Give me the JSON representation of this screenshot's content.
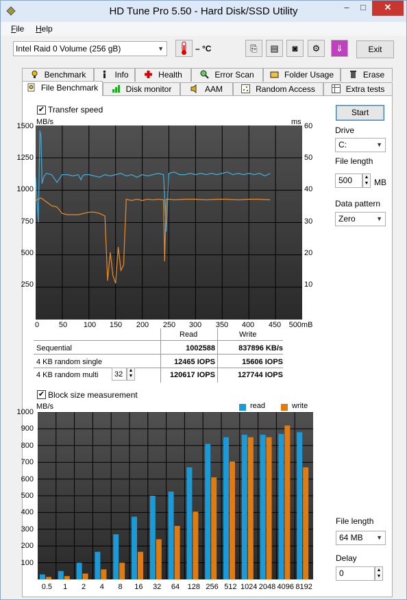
{
  "window": {
    "title": "HD Tune Pro 5.50 - Hard Disk/SSD Utility",
    "min_label": "–",
    "max_label": "□",
    "close_label": "✕"
  },
  "menu": {
    "file": "File",
    "help": "Help"
  },
  "toolbar": {
    "drive": "Intel   Raid 0 Volume (256 gB)",
    "temperature": "– °C",
    "exit_label": "Exit",
    "icons": [
      "copy-icon",
      "save-icon",
      "camera-icon",
      "options-icon",
      "download-icon"
    ],
    "icon_glyphs": [
      "⎘",
      "▤",
      "◙",
      "⚙",
      "⇓"
    ]
  },
  "tabs_top": [
    "Benchmark",
    "Info",
    "Health",
    "Error Scan",
    "Folder Usage",
    "Erase"
  ],
  "tabs_bottom": [
    "File Benchmark",
    "Disk monitor",
    "AAM",
    "Random Access",
    "Extra tests"
  ],
  "transfer": {
    "checkbox_label": "Transfer speed",
    "checked": true,
    "y_unit_left": "MB/s",
    "y_unit_right": "ms",
    "y_ticks_left": [
      "1500",
      "1250",
      "1000",
      "750",
      "500",
      "250"
    ],
    "y_ticks_right": [
      "60",
      "50",
      "40",
      "30",
      "20",
      "10"
    ],
    "x_ticks": [
      "0",
      "50",
      "100",
      "150",
      "200",
      "250",
      "300",
      "350",
      "400",
      "450",
      "500mB"
    ]
  },
  "results": {
    "col_read": "Read",
    "col_write": "Write",
    "rows": [
      {
        "label": "Sequential",
        "read": "1002588",
        "write": "837896 KB/s"
      },
      {
        "label": "4 KB random single",
        "read": "12465 IOPS",
        "write": "15606 IOPS"
      },
      {
        "label": "4 KB random multi",
        "read": "120617 IOPS",
        "write": "127744 IOPS"
      }
    ],
    "queue_depth": "32"
  },
  "side": {
    "start_label": "Start",
    "drive_label": "Drive",
    "drive_value": "C:",
    "file_length_label": "File length",
    "file_length_value": "500",
    "file_length_unit": "MB",
    "pattern_label": "Data pattern",
    "pattern_value": "Zero"
  },
  "block": {
    "checkbox_label": "Block size measurement",
    "checked": true,
    "y_unit": "MB/s",
    "legend_read": "read",
    "legend_write": "write",
    "y_ticks": [
      "1000",
      "900",
      "800",
      "700",
      "600",
      "500",
      "400",
      "300",
      "200",
      "100"
    ],
    "file_length_label": "File length",
    "file_length_value": "64 MB",
    "delay_label": "Delay",
    "delay_value": "0",
    "colors": {
      "read": "#1a9ad6",
      "write": "#e07b12"
    }
  },
  "chart_data": [
    {
      "type": "line",
      "title": "",
      "xlabel": "",
      "ylabel": "MB/s",
      "xlim": [
        0,
        500
      ],
      "ylim": [
        0,
        1500
      ],
      "y2lim": [
        0,
        60
      ],
      "grid": true,
      "series": [
        {
          "name": "",
          "axis": "left",
          "color": "#3fa9d9",
          "x": [
            0,
            5,
            8,
            10,
            12,
            15,
            20,
            30,
            40,
            50,
            60,
            70,
            80,
            85,
            88,
            92,
            100,
            110,
            120,
            130,
            140,
            150,
            160,
            170,
            180,
            190,
            200,
            210,
            220,
            230,
            240,
            245,
            250,
            260,
            270,
            280,
            290,
            300,
            310,
            320,
            330,
            340,
            350,
            360,
            370,
            380,
            390,
            400,
            410,
            420,
            430,
            440
          ],
          "y": [
            1100,
            750,
            1460,
            1420,
            1050,
            1100,
            1130,
            1120,
            1060,
            1120,
            1120,
            1110,
            1120,
            1080,
            1110,
            1120,
            1120,
            1110,
            1100,
            1120,
            1110,
            1120,
            1130,
            1110,
            1120,
            1100,
            1120,
            1110,
            1120,
            1130,
            1120,
            680,
            1130,
            1140,
            1120,
            1120,
            1130,
            1120,
            1130,
            1120,
            1130,
            1120,
            1130,
            1140,
            1120,
            1130,
            1120,
            1130,
            1120,
            1130,
            1110,
            1130
          ]
        },
        {
          "name": "",
          "axis": "left",
          "color": "#e0882a",
          "x": [
            0,
            10,
            20,
            30,
            40,
            50,
            60,
            70,
            80,
            90,
            100,
            110,
            120,
            130,
            135,
            140,
            145,
            150,
            155,
            160,
            165,
            170,
            180,
            190,
            200,
            210,
            220,
            230,
            240,
            242,
            245,
            250,
            260,
            280,
            300,
            320,
            340,
            360,
            380,
            400,
            420,
            440
          ],
          "y": [
            920,
            940,
            910,
            880,
            870,
            820,
            810,
            810,
            810,
            820,
            830,
            830,
            820,
            800,
            300,
            520,
            340,
            280,
            560,
            380,
            420,
            930,
            920,
            930,
            920,
            930,
            925,
            930,
            925,
            450,
            930,
            930,
            925,
            930,
            930,
            925,
            930,
            930,
            925,
            930,
            930,
            925
          ]
        }
      ]
    },
    {
      "type": "bar",
      "title": "",
      "xlabel": "",
      "ylabel": "MB/s",
      "ylim": [
        0,
        1000
      ],
      "legend": "top-right",
      "categories": [
        "0.5",
        "1",
        "2",
        "4",
        "8",
        "16",
        "32",
        "64",
        "128",
        "256",
        "512",
        "1024",
        "2048",
        "4096",
        "8192"
      ],
      "series": [
        {
          "name": "read",
          "values": [
            30,
            50,
            100,
            165,
            270,
            375,
            500,
            525,
            670,
            810,
            850,
            865,
            865,
            870,
            880
          ]
        },
        {
          "name": "write",
          "values": [
            15,
            20,
            35,
            60,
            100,
            165,
            240,
            320,
            405,
            610,
            705,
            850,
            850,
            920,
            670
          ]
        }
      ]
    }
  ]
}
